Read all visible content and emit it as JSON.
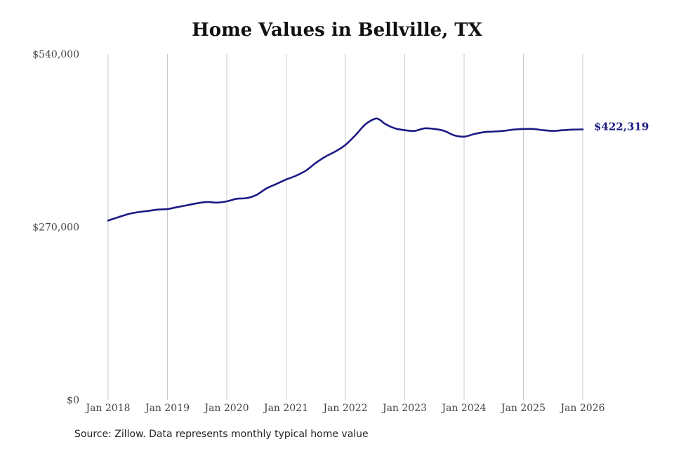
{
  "chart_data": {
    "type": "line",
    "title": "Home Values in Bellville, TX",
    "xlabel": "",
    "ylabel": "",
    "x_ticks": [
      "Jan 2018",
      "Jan 2019",
      "Jan 2020",
      "Jan 2021",
      "Jan 2022",
      "Jan 2023",
      "Jan 2024",
      "Jan 2025",
      "Jan 2026"
    ],
    "y_ticks": [
      {
        "value": 0,
        "label": "$0"
      },
      {
        "value": 270000,
        "label": "$270,000"
      },
      {
        "value": 540000,
        "label": "$540,000"
      }
    ],
    "ylim": [
      0,
      540000
    ],
    "xlim": [
      "2018-01",
      "2026-01"
    ],
    "grid": "vertical",
    "series": [
      {
        "color": "#1c1a85",
        "x": [
          "2018-01",
          "2018-03",
          "2018-05",
          "2018-07",
          "2018-09",
          "2018-11",
          "2019-01",
          "2019-03",
          "2019-05",
          "2019-07",
          "2019-09",
          "2019-11",
          "2020-01",
          "2020-03",
          "2020-05",
          "2020-07",
          "2020-09",
          "2020-11",
          "2021-01",
          "2021-03",
          "2021-05",
          "2021-07",
          "2021-09",
          "2021-11",
          "2022-01",
          "2022-03",
          "2022-05",
          "2022-07",
          "2022-08",
          "2022-09",
          "2022-11",
          "2023-01",
          "2023-03",
          "2023-05",
          "2023-07",
          "2023-09",
          "2023-11",
          "2024-01",
          "2024-03",
          "2024-05",
          "2024-07",
          "2024-09",
          "2024-11",
          "2025-01",
          "2025-03",
          "2025-05",
          "2025-07",
          "2025-09",
          "2025-11",
          "2026-01"
        ],
        "values": [
          280000,
          285000,
          290000,
          293000,
          295000,
          297000,
          298000,
          301000,
          304000,
          307000,
          309000,
          308000,
          310000,
          314000,
          315000,
          320000,
          330000,
          337000,
          344000,
          350000,
          358000,
          370000,
          380000,
          388000,
          398000,
          413000,
          430000,
          439000,
          437000,
          431000,
          424000,
          421000,
          420000,
          424000,
          423000,
          420000,
          413000,
          411000,
          415000,
          418000,
          419000,
          420000,
          422000,
          423000,
          423000,
          421000,
          420000,
          421000,
          422000,
          422319
        ]
      }
    ],
    "annotations": [
      {
        "label": "$422,319",
        "at": "last-point"
      }
    ]
  },
  "source_note": "Source: Zillow. Data represents monthly typical home value"
}
